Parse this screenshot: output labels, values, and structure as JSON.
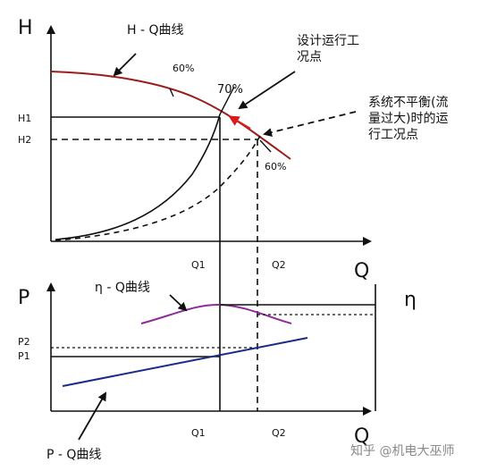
{
  "top_chart": {
    "axis_y_label": "H",
    "axis_x_label": "Q",
    "h1": "H1",
    "h2": "H2",
    "q1": "Q1",
    "q2": "Q2",
    "hq_curve_label": "H - Q曲线",
    "eff_60_left": "60%",
    "eff_70": "70%",
    "eff_60_right": "60%",
    "design_point_label": "设计运行工\n况点",
    "imbalance_point_label": "系统不平衡(流\n量过大)时的运\n行工况点"
  },
  "bottom_chart": {
    "axis_y_label": "P",
    "axis_x_label": "Q",
    "eta_label": "η",
    "p2": "P2",
    "p1": "P1",
    "q1": "Q1",
    "q2": "Q2",
    "eta_curve_label": "η - Q曲线",
    "pq_curve_label": "P - Q曲线"
  },
  "watermark": "知乎 @机电大巫师",
  "colors": {
    "hq_curve": "#9b1c1c",
    "eta_curve": "#8e2c9a",
    "pq_curve": "#1a2a8a",
    "arrow_red": "#d81b1b",
    "axis": "#111111"
  }
}
